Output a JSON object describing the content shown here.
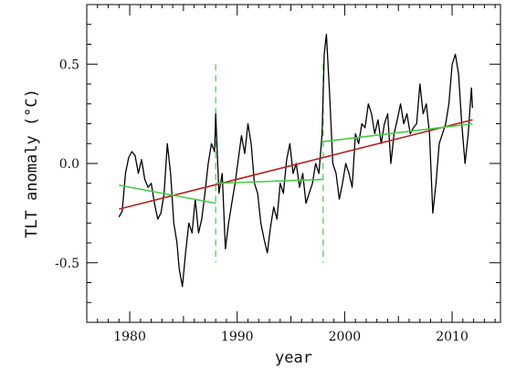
{
  "chart_data": {
    "type": "line",
    "title": "",
    "xlabel": "year",
    "ylabel": "TLT anomaly (°C)",
    "xlim": [
      1976.0,
      2014.5
    ],
    "ylim": [
      -0.8,
      0.8
    ],
    "x_ticks": [
      1980,
      1990,
      2000,
      2010
    ],
    "x_tick_labels": [
      "1980",
      "1990",
      "2000",
      "2010"
    ],
    "y_ticks": [
      -0.5,
      0.0,
      0.5
    ],
    "y_tick_labels": [
      "-0.5",
      "0.0",
      "0.5"
    ],
    "grid": false,
    "colors": {
      "data": "#000000",
      "overall_trend": "#b22222",
      "segment_trends": "#44cc44",
      "breaks": "#44cc44"
    },
    "series": [
      {
        "role": "monthly anomaly",
        "x": [
          1979.0,
          1979.3,
          1979.6,
          1979.9,
          1980.2,
          1980.5,
          1980.8,
          1981.1,
          1981.4,
          1981.7,
          1982.0,
          1982.3,
          1982.6,
          1982.9,
          1983.2,
          1983.5,
          1983.8,
          1984.1,
          1984.4,
          1984.6,
          1984.9,
          1985.2,
          1985.5,
          1985.8,
          1986.1,
          1986.4,
          1986.7,
          1987.0,
          1987.3,
          1987.6,
          1987.9,
          1988.0,
          1988.3,
          1988.6,
          1988.9,
          1989.2,
          1989.5,
          1989.8,
          1990.1,
          1990.4,
          1990.7,
          1991.0,
          1991.3,
          1991.6,
          1991.9,
          1992.2,
          1992.5,
          1992.8,
          1993.1,
          1993.4,
          1993.7,
          1994.0,
          1994.3,
          1994.6,
          1994.9,
          1995.2,
          1995.5,
          1995.8,
          1996.1,
          1996.4,
          1996.7,
          1997.0,
          1997.3,
          1997.6,
          1997.9,
          1998.1,
          1998.3,
          1998.6,
          1998.9,
          1999.2,
          1999.5,
          1999.8,
          2000.1,
          2000.4,
          2000.7,
          2001.0,
          2001.3,
          2001.6,
          2001.9,
          2002.2,
          2002.5,
          2002.8,
          2003.1,
          2003.4,
          2003.7,
          2004.0,
          2004.3,
          2004.6,
          2004.9,
          2005.2,
          2005.5,
          2005.8,
          2006.1,
          2006.4,
          2006.7,
          2007.0,
          2007.3,
          2007.6,
          2007.9,
          2008.2,
          2008.5,
          2008.8,
          2009.1,
          2009.4,
          2009.7,
          2010.0,
          2010.3,
          2010.6,
          2010.9,
          2011.2,
          2011.5,
          2011.8,
          2011.9
        ],
        "y": [
          -0.27,
          -0.24,
          -0.05,
          0.03,
          0.06,
          0.04,
          -0.05,
          0.02,
          -0.08,
          -0.12,
          -0.1,
          -0.2,
          -0.28,
          -0.25,
          -0.15,
          0.1,
          -0.05,
          -0.3,
          -0.4,
          -0.53,
          -0.62,
          -0.45,
          -0.3,
          -0.35,
          -0.18,
          -0.35,
          -0.28,
          -0.15,
          0.0,
          0.1,
          0.06,
          0.25,
          -0.15,
          -0.05,
          -0.43,
          -0.3,
          -0.2,
          -0.1,
          0.02,
          0.14,
          0.05,
          0.2,
          0.1,
          -0.1,
          -0.15,
          -0.3,
          -0.38,
          -0.45,
          -0.32,
          -0.22,
          -0.28,
          -0.1,
          -0.15,
          0.02,
          0.1,
          -0.05,
          0.0,
          -0.12,
          -0.05,
          -0.2,
          -0.15,
          -0.1,
          0.0,
          -0.05,
          0.15,
          0.55,
          0.65,
          0.35,
          0.0,
          -0.05,
          -0.18,
          -0.1,
          0.0,
          -0.05,
          -0.12,
          0.15,
          0.1,
          0.2,
          0.18,
          0.3,
          0.25,
          0.15,
          0.22,
          0.1,
          0.2,
          0.25,
          0.0,
          0.15,
          0.22,
          0.3,
          0.2,
          0.25,
          0.15,
          0.18,
          0.2,
          0.4,
          0.25,
          0.3,
          0.15,
          -0.25,
          -0.1,
          0.1,
          0.15,
          0.2,
          0.3,
          0.5,
          0.55,
          0.45,
          0.2,
          0.0,
          0.15,
          0.38,
          0.28
        ]
      },
      {
        "role": "overall linear trend",
        "x": [
          1979.0,
          2011.9
        ],
        "y": [
          -0.23,
          0.22
        ]
      },
      {
        "role": "segment trend",
        "x": [
          1979.0,
          1988.0
        ],
        "y": [
          -0.11,
          -0.2
        ]
      },
      {
        "role": "segment trend",
        "x": [
          1988.0,
          1998.0
        ],
        "y": [
          -0.1,
          -0.08
        ]
      },
      {
        "role": "segment trend",
        "x": [
          1998.0,
          2011.9
        ],
        "y": [
          0.11,
          0.2
        ]
      }
    ],
    "breakpoints": [
      {
        "x": 1988.0,
        "y_range": [
          -0.5,
          0.5
        ]
      },
      {
        "x": 1998.0,
        "y_range": [
          -0.5,
          0.5
        ]
      }
    ]
  }
}
